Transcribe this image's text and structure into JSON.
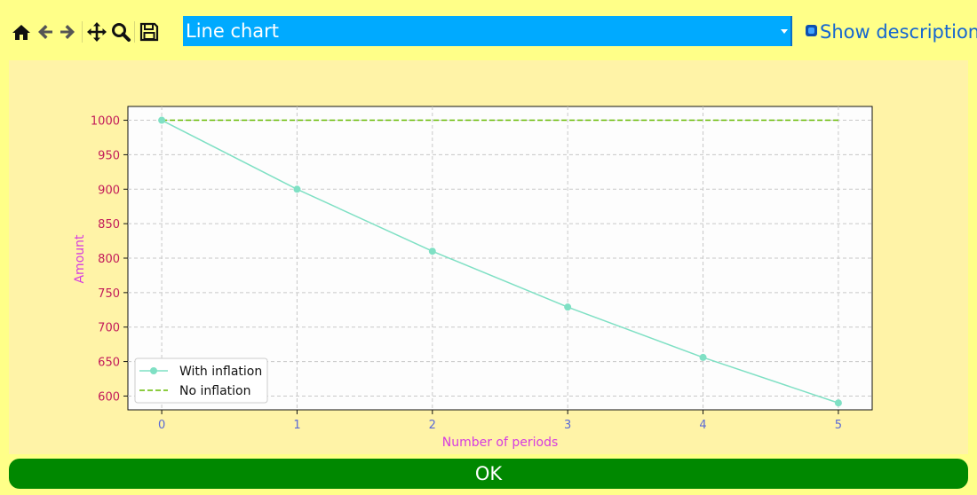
{
  "toolbar": {
    "icons": [
      "home-icon",
      "back-arrow-icon",
      "forward-arrow-icon",
      "pan-icon",
      "zoom-icon",
      "save-icon"
    ]
  },
  "chart_selector": {
    "selected": "Line chart"
  },
  "show_description": {
    "label": "Show description"
  },
  "ok_button": {
    "label": "OK"
  },
  "colors": {
    "window_bg": "#ffff88",
    "chart_panel_bg": "#fff3a7",
    "select_bg": "#00aaff",
    "ok_bg": "#008800",
    "series_with_inflation": "#7fe0c4",
    "series_no_inflation": "#66bb00",
    "ytick_color": "#c21a5a",
    "xtick_color": "#5a6ad6",
    "axis_label_color": "#d63be0"
  },
  "chart_data": {
    "type": "line",
    "title": "",
    "xlabel": "Number of periods",
    "ylabel": "Amount",
    "x": [
      0,
      1,
      2,
      3,
      4,
      5
    ],
    "series": [
      {
        "name": "With inflation",
        "values": [
          1000,
          900,
          810,
          729,
          656,
          590
        ],
        "style": "solid",
        "marker": "circle",
        "color": "#7fe0c4"
      },
      {
        "name": "No inflation",
        "values": [
          1000,
          1000,
          1000,
          1000,
          1000,
          1000
        ],
        "style": "dashed",
        "marker": "none",
        "color": "#66bb00"
      }
    ],
    "xticks": [
      0,
      1,
      2,
      3,
      4,
      5
    ],
    "yticks": [
      600,
      650,
      700,
      750,
      800,
      850,
      900,
      950,
      1000
    ],
    "xlim": [
      -0.25,
      5.25
    ],
    "ylim": [
      580,
      1020
    ],
    "grid": true,
    "legend": "bottom-left"
  }
}
